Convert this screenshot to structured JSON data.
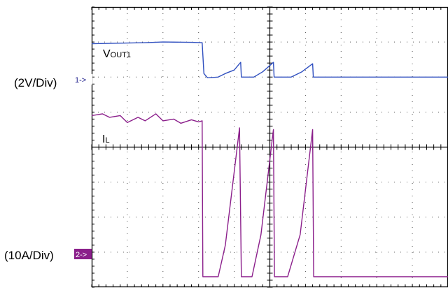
{
  "chart_data": {
    "type": "line",
    "title": "",
    "grid": true,
    "divisions": {
      "x": 10,
      "y": 8
    },
    "series": [
      {
        "name": "VOUT1",
        "label_main": "V",
        "label_sub": "OUT1",
        "scale_label": "(2V/Div)",
        "marker": "1->",
        "color": "#2f4fbf",
        "points": [
          [
            0,
            6.95
          ],
          [
            1.0,
            6.97
          ],
          [
            1.5,
            6.98
          ],
          [
            2.0,
            7.0
          ],
          [
            2.8,
            6.99
          ],
          [
            3.1,
            6.98
          ],
          [
            3.15,
            6.1
          ],
          [
            3.25,
            5.98
          ],
          [
            3.55,
            6.0
          ],
          [
            3.75,
            6.1
          ],
          [
            4.0,
            6.2
          ],
          [
            4.18,
            6.42
          ],
          [
            4.2,
            6.0
          ],
          [
            4.55,
            6.0
          ],
          [
            4.8,
            6.15
          ],
          [
            5.1,
            6.42
          ],
          [
            5.12,
            6.0
          ],
          [
            5.6,
            6.0
          ],
          [
            5.9,
            6.15
          ],
          [
            6.2,
            6.38
          ],
          [
            6.22,
            6.0
          ],
          [
            10,
            6.0
          ]
        ]
      },
      {
        "name": "IL",
        "label_main": "I",
        "label_sub": "L",
        "scale_label": "(10A/Div)",
        "marker": "2->",
        "color": "#8b1f8b",
        "points": [
          [
            0,
            4.9
          ],
          [
            0.3,
            4.95
          ],
          [
            0.5,
            4.85
          ],
          [
            0.8,
            4.9
          ],
          [
            1.0,
            4.7
          ],
          [
            1.3,
            4.85
          ],
          [
            1.5,
            4.75
          ],
          [
            1.8,
            4.95
          ],
          [
            2.0,
            4.75
          ],
          [
            2.3,
            4.8
          ],
          [
            2.5,
            4.68
          ],
          [
            2.8,
            4.78
          ],
          [
            3.0,
            4.72
          ],
          [
            3.1,
            4.75
          ],
          [
            3.12,
            0.3
          ],
          [
            3.55,
            0.3
          ],
          [
            3.75,
            1.2
          ],
          [
            4.15,
            4.55
          ],
          [
            4.2,
            0.3
          ],
          [
            4.5,
            0.3
          ],
          [
            4.75,
            1.5
          ],
          [
            5.1,
            4.5
          ],
          [
            5.13,
            0.3
          ],
          [
            5.5,
            0.3
          ],
          [
            5.85,
            1.5
          ],
          [
            6.2,
            4.5
          ],
          [
            6.23,
            0.3
          ],
          [
            10,
            0.3
          ]
        ]
      }
    ]
  }
}
